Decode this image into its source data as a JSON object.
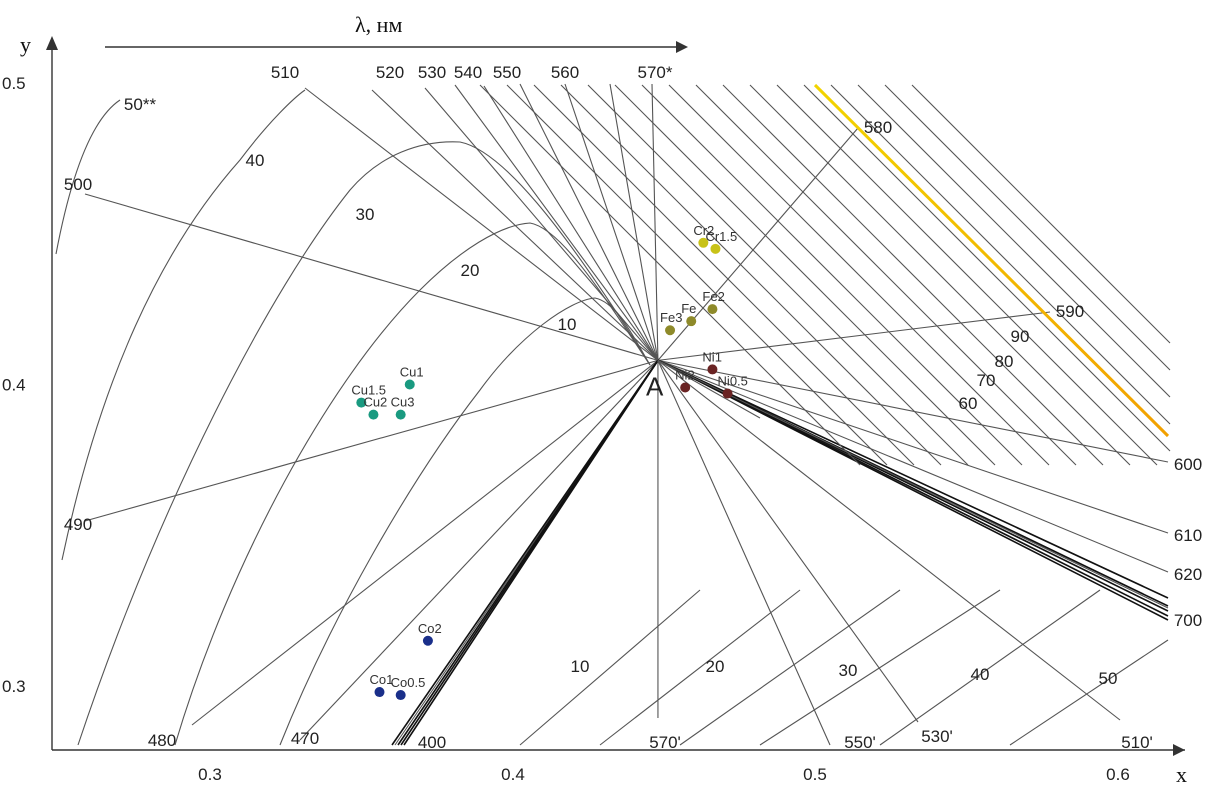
{
  "chart_data": {
    "type": "scatter",
    "title": "",
    "xlabel": "x",
    "ylabel": "y",
    "top_axis_label": "λ, нм",
    "xlim": [
      0.25,
      0.62
    ],
    "ylim": [
      0.27,
      0.5
    ],
    "x_ticks": [
      "0.3",
      "0.4",
      "0.5",
      "0.6"
    ],
    "y_ticks": [
      "0.3",
      "0.4",
      "0.5"
    ],
    "white_point": {
      "label": "A",
      "x": 0.448,
      "y": 0.408
    },
    "wavelength_labels": [
      "510",
      "520",
      "530",
      "540",
      "550",
      "560",
      "570*",
      "580",
      "590",
      "600",
      "610",
      "620",
      "700",
      "500",
      "490",
      "480",
      "470",
      "400",
      "570'",
      "550'",
      "530'",
      "510'"
    ],
    "purity_labels_upper": [
      "50**",
      "40",
      "30",
      "20",
      "10"
    ],
    "purity_labels_right": [
      "90",
      "80",
      "70",
      "60"
    ],
    "purity_labels_lower": [
      "10",
      "20",
      "30",
      "40",
      "50"
    ],
    "series": [
      {
        "name": "Cu",
        "color": "#1a9a80",
        "points": [
          {
            "label": "Cu1",
            "x": 0.366,
            "y": 0.4
          },
          {
            "label": "Cu1.5",
            "x": 0.35,
            "y": 0.394
          },
          {
            "label": "Cu2",
            "x": 0.354,
            "y": 0.39
          },
          {
            "label": "Cu3",
            "x": 0.363,
            "y": 0.39
          }
        ]
      },
      {
        "name": "Co",
        "color": "#1a2f8a",
        "points": [
          {
            "label": "Co2",
            "x": 0.372,
            "y": 0.315
          },
          {
            "label": "Co1",
            "x": 0.356,
            "y": 0.298
          },
          {
            "label": "Co0.5",
            "x": 0.363,
            "y": 0.297
          }
        ]
      },
      {
        "name": "Cr",
        "color": "#c8c218",
        "points": [
          {
            "label": "Cr2",
            "x": 0.463,
            "y": 0.447
          },
          {
            "label": "Cr1.5",
            "x": 0.467,
            "y": 0.445
          }
        ]
      },
      {
        "name": "Fe",
        "color": "#8e8a2a",
        "points": [
          {
            "label": "Fe2",
            "x": 0.466,
            "y": 0.425
          },
          {
            "label": "Fe",
            "x": 0.459,
            "y": 0.421
          },
          {
            "label": "Fe3",
            "x": 0.452,
            "y": 0.418
          }
        ]
      },
      {
        "name": "Ni",
        "color": "#6a2424",
        "points": [
          {
            "label": "Ni1",
            "x": 0.466,
            "y": 0.405
          },
          {
            "label": "Ni2",
            "x": 0.457,
            "y": 0.399
          },
          {
            "label": "Ni0.5",
            "x": 0.471,
            "y": 0.397
          }
        ]
      }
    ],
    "legend": "none",
    "grid": false
  }
}
